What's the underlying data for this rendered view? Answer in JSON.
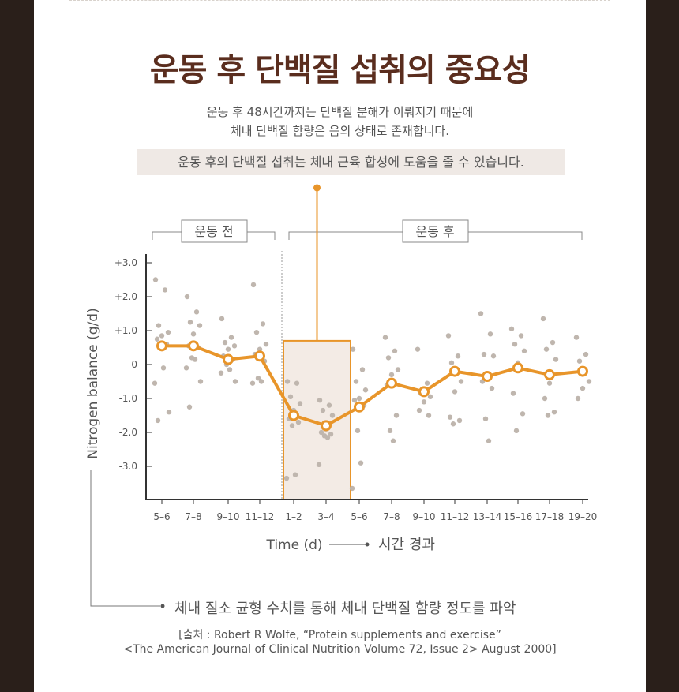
{
  "title": "운동 후 단백질 섭취의 중요성",
  "desc_line1": "운동 후 48시간까지는 단백질 분해가 이뤄지기 때문에",
  "desc_line2": "체내 단백질 함량은 음의 상태로 존재합니다.",
  "highlight": "운동 후의 단백질 섭취는 체내 근육 합성에 도움을 줄 수 있습니다.",
  "before_label": "운동 전",
  "after_label": "운동 후",
  "time_caption": "시간 경과",
  "bottom_note": "체내 질소 균형 수치를 통해 체내 단백질 함량 정도를 파악",
  "source_line1": "[출처 : Robert R Wolfe, “Protein supplements and exercise”",
  "source_line2": "<The American Journal of Clinical Nutrition Volume 72, Issue 2> August 2000]",
  "colors": {
    "accent": "#e8952a",
    "title": "#5a2d1e",
    "dot": "#bfb6ae",
    "box_fill": "#f3ebe5"
  },
  "chart_data": {
    "type": "line",
    "xlabel": "Time (d)",
    "ylabel": "Nitrogen balance (g/d)",
    "ylim": [
      -3.9,
      3.0
    ],
    "yticks": [
      3.0,
      2.0,
      1.0,
      0,
      -1.0,
      -2.0,
      -3.0
    ],
    "ytick_labels": [
      "+3.0",
      "+2.0",
      "+1.0",
      "0",
      "-1.0",
      "-2.0",
      "-3.0"
    ],
    "categories": [
      "5–6",
      "7–8",
      "9–10",
      "11–12",
      "1–2",
      "3–4",
      "5–6",
      "7–8",
      "9–10",
      "11–12",
      "13–14",
      "15–16",
      "17–18",
      "19–20"
    ],
    "highlight_categories": [
      "1–2",
      "3–4"
    ],
    "values": [
      0.55,
      0.55,
      0.15,
      0.25,
      -1.5,
      -1.8,
      -1.25,
      -0.55,
      -0.8,
      -0.2,
      -0.35,
      -0.1,
      -0.3,
      -0.2
    ],
    "scatter": [
      [
        2.5,
        2.2,
        1.15,
        0.95,
        0.85,
        0.75,
        0.6,
        0.55,
        -0.1,
        -0.55,
        -1.4,
        -1.65
      ],
      [
        2.0,
        1.55,
        1.25,
        1.15,
        0.9,
        0.55,
        0.5,
        0.2,
        0.15,
        -0.1,
        -0.5,
        -1.25
      ],
      [
        1.35,
        0.8,
        0.65,
        0.55,
        0.45,
        0.25,
        0.15,
        0.0,
        -0.15,
        -0.25,
        -0.5
      ],
      [
        2.35,
        1.2,
        0.95,
        0.6,
        0.45,
        0.3,
        0.1,
        -0.4,
        -0.5,
        -0.55
      ],
      [
        -0.5,
        -0.55,
        -0.95,
        -1.15,
        -1.35,
        -1.6,
        -1.7,
        -1.8,
        -3.25,
        -3.35
      ],
      [
        -1.05,
        -1.2,
        -1.35,
        -1.5,
        -1.9,
        -2.0,
        -2.05,
        -2.1,
        -2.15,
        -2.95
      ],
      [
        0.45,
        -0.15,
        -0.5,
        -0.75,
        -1.0,
        -1.05,
        -1.2,
        -1.95,
        -2.9,
        -3.65
      ],
      [
        0.8,
        0.4,
        0.2,
        -0.15,
        -0.3,
        -0.6,
        -1.5,
        -1.95,
        -2.25
      ],
      [
        0.45,
        -0.55,
        -0.85,
        -0.95,
        -1.1,
        -1.35,
        -1.5
      ],
      [
        0.85,
        0.25,
        0.05,
        -0.5,
        -0.8,
        -1.55,
        -1.65,
        -1.75
      ],
      [
        1.5,
        0.9,
        0.3,
        0.25,
        -0.35,
        -0.5,
        -0.7,
        -1.6,
        -2.25
      ],
      [
        1.05,
        0.85,
        0.6,
        0.4,
        0.05,
        -0.85,
        -1.45,
        -1.95
      ],
      [
        1.35,
        0.65,
        0.45,
        0.15,
        -0.55,
        -1.0,
        -1.4,
        -1.5
      ],
      [
        0.8,
        0.3,
        0.1,
        -0.5,
        -0.7,
        -1.0
      ]
    ]
  }
}
